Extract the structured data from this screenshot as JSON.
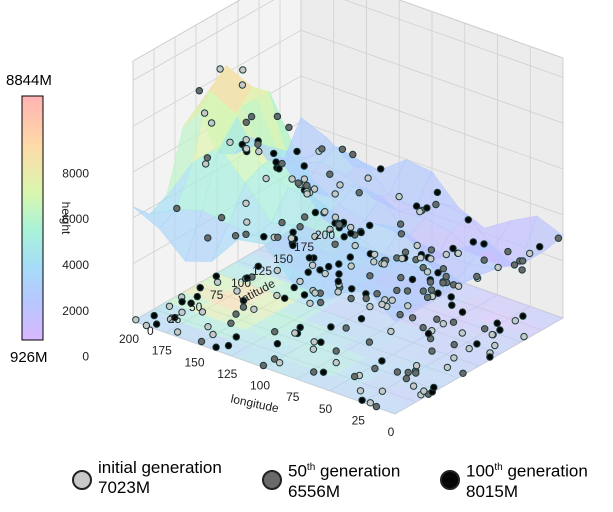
{
  "chart_data": {
    "type": "scatter",
    "title": "",
    "axes": {
      "longitude": {
        "label": "longitude",
        "ticks": [
          200,
          175,
          150,
          125,
          100,
          75,
          50,
          25,
          0
        ],
        "range": [
          0,
          200
        ]
      },
      "latitude": {
        "label": "latitude",
        "ticks": [
          0,
          25,
          50,
          75,
          100,
          125,
          150,
          175,
          200
        ],
        "range": [
          0,
          200
        ]
      },
      "height": {
        "label": "height",
        "ticks": [
          0,
          2000,
          4000,
          6000,
          8000
        ],
        "range": [
          -2500,
          8844
        ]
      }
    },
    "colorbar": {
      "max_label": "8844M",
      "min_label": "926M",
      "colormap": "rainbow"
    },
    "grid": true,
    "series": [
      {
        "name": "initial generation",
        "value_label": "7023M",
        "color": "#c8c8c8"
      },
      {
        "name": "50th generation",
        "value_label": "6556M",
        "color": "#6a6a6a"
      },
      {
        "name": "100th generation",
        "value_label": "8015M",
        "color": "#050505"
      }
    ],
    "legend_placement": "bottom"
  },
  "legend": {
    "items": [
      {
        "main": "initial generation",
        "sup": "",
        "rest": "",
        "value": "7023M"
      },
      {
        "main": "50",
        "sup": "th",
        "rest": " generation",
        "value": "6556M"
      },
      {
        "main": "100",
        "sup": "th",
        "rest": " generation",
        "value": "8015M"
      }
    ]
  },
  "colors": {
    "point_edge": "#1a3a3a",
    "grid": "#d0d0d0",
    "pane": "#f2f2f2"
  }
}
